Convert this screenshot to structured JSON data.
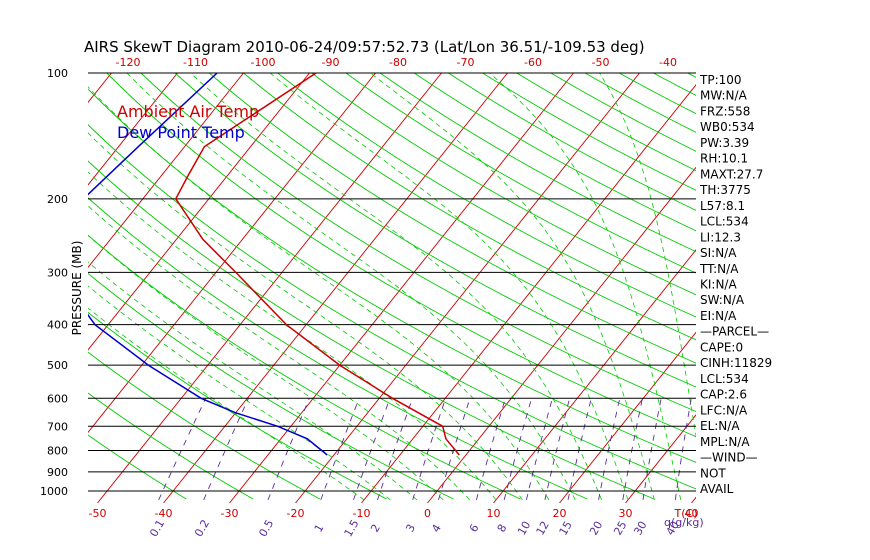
{
  "chart_data": {
    "type": "skew-t log-p",
    "title": "AIRS SkewT Diagram 2010-06-24/09:57:52.73 (Lat/Lon 36.51/-109.53 deg)",
    "ylabel": "PRESSURE (MB)",
    "y_scale": "log",
    "pressure_ticks": [
      100,
      200,
      300,
      400,
      500,
      600,
      700,
      800,
      900,
      1000
    ],
    "bottom_temp_ticks": [
      -50,
      -40,
      -30,
      -20,
      -10,
      0,
      10,
      20,
      30,
      40
    ],
    "bottom_unit_label": "T(C)",
    "top_temp_ticks": [
      -120,
      -110,
      -100,
      -90,
      -80,
      -70,
      -60,
      -50,
      -40
    ],
    "mixing_ratio_ticks": [
      "0.1",
      "0.2",
      "0.5",
      "1",
      "1.5",
      "2",
      "3",
      "4",
      "6",
      "8",
      "10",
      "12",
      "15",
      "20",
      "25",
      "30",
      "40"
    ],
    "mixing_ratio_unit_label": "q(g/kg)",
    "colors": {
      "temperature": "#cc0000",
      "dewpoint": "#0000cc",
      "isotherm": "#cc0000",
      "dry_adiabat": "#00cc00",
      "moist_adiabat": "#00cc00",
      "mixing_ratio": "#5a2d9c",
      "pressure_line": "#000000"
    },
    "legend": [
      {
        "label": "Ambient Air Temp",
        "color": "#cc0000"
      },
      {
        "label": "Dew Point Temp",
        "color": "#0000cc"
      }
    ],
    "legend_placement": "top-left",
    "series": [
      {
        "name": "Ambient Air Temp",
        "points": [
          {
            "p": 100,
            "t": -69
          },
          {
            "p": 150,
            "t": -77
          },
          {
            "p": 175,
            "t": -76
          },
          {
            "p": 200,
            "t": -75
          },
          {
            "p": 250,
            "t": -66
          },
          {
            "p": 300,
            "t": -57
          },
          {
            "p": 400,
            "t": -43
          },
          {
            "p": 500,
            "t": -30
          },
          {
            "p": 600,
            "t": -18
          },
          {
            "p": 700,
            "t": -7
          },
          {
            "p": 750,
            "t": -5
          },
          {
            "p": 820,
            "t": -1
          }
        ]
      },
      {
        "name": "Dew Point Temp",
        "points": [
          {
            "p": 100,
            "t": -84
          },
          {
            "p": 150,
            "t": -87
          },
          {
            "p": 200,
            "t": -89
          },
          {
            "p": 250,
            "t": -88
          },
          {
            "p": 300,
            "t": -84
          },
          {
            "p": 400,
            "t": -72
          },
          {
            "p": 500,
            "t": -59
          },
          {
            "p": 600,
            "t": -47
          },
          {
            "p": 650,
            "t": -40
          },
          {
            "p": 700,
            "t": -32
          },
          {
            "p": 750,
            "t": -26
          },
          {
            "p": 820,
            "t": -21
          }
        ]
      }
    ]
  },
  "indices": [
    "TP:100",
    "MW:N/A",
    "FRZ:558",
    "WB0:534",
    "PW:3.39",
    "RH:10.1",
    "MAXT:27.7",
    "TH:3775",
    "L57:8.1",
    "LCL:534",
    "LI:12.3",
    "SI:N/A",
    "TT:N/A",
    "KI:N/A",
    "SW:N/A",
    "EI:N/A",
    "—PARCEL—",
    "CAPE:0",
    "CINH:11829",
    "LCL:534",
    "CAP:2.6",
    "LFC:N/A",
    "EL:N/A",
    "MPL:N/A",
    "—WIND—",
    "NOT",
    "AVAIL"
  ]
}
